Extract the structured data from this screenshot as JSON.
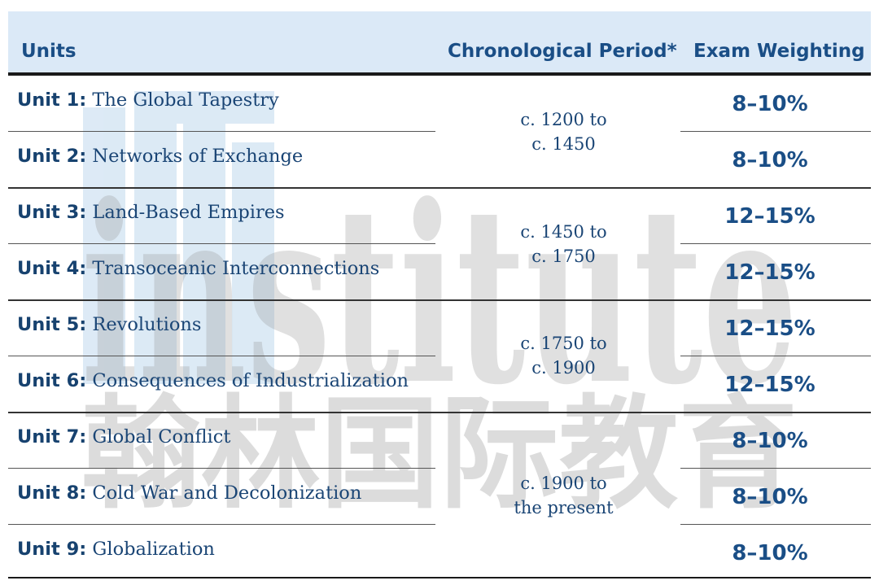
{
  "header": {
    "units": "Units",
    "period": "Chronological Period*",
    "weighting": "Exam Weighting"
  },
  "units": [
    {
      "num": "Unit 1:",
      "title": "The Global Tapestry",
      "weight": "8–10%"
    },
    {
      "num": "Unit 2:",
      "title": "Networks of Exchange",
      "weight": "8–10%"
    },
    {
      "num": "Unit 3:",
      "title": "Land-Based Empires",
      "weight": "12–15%"
    },
    {
      "num": "Unit 4:",
      "title": "Transoceanic Interconnections",
      "weight": "12–15%"
    },
    {
      "num": "Unit 5:",
      "title": "Revolutions",
      "weight": "12–15%"
    },
    {
      "num": "Unit 6:",
      "title": "Consequences of Industrialization",
      "weight": "12–15%"
    },
    {
      "num": "Unit 7:",
      "title": "Global Conflict",
      "weight": "8–10%"
    },
    {
      "num": "Unit 8:",
      "title": "Cold War and Decolonization",
      "weight": "8–10%"
    },
    {
      "num": "Unit 9:",
      "title": "Globalization",
      "weight": "8–10%"
    }
  ],
  "periods": [
    {
      "line1": "c. 1200 to",
      "line2": "c. 1450"
    },
    {
      "line1": "c. 1450 to",
      "line2": "c. 1750"
    },
    {
      "line1": "c. 1750 to",
      "line2": "c. 1900"
    },
    {
      "line1": "c. 1900 to",
      "line2": "the present"
    }
  ],
  "watermark": {
    "word": "institute",
    "chinese": "翰林国际教育"
  }
}
